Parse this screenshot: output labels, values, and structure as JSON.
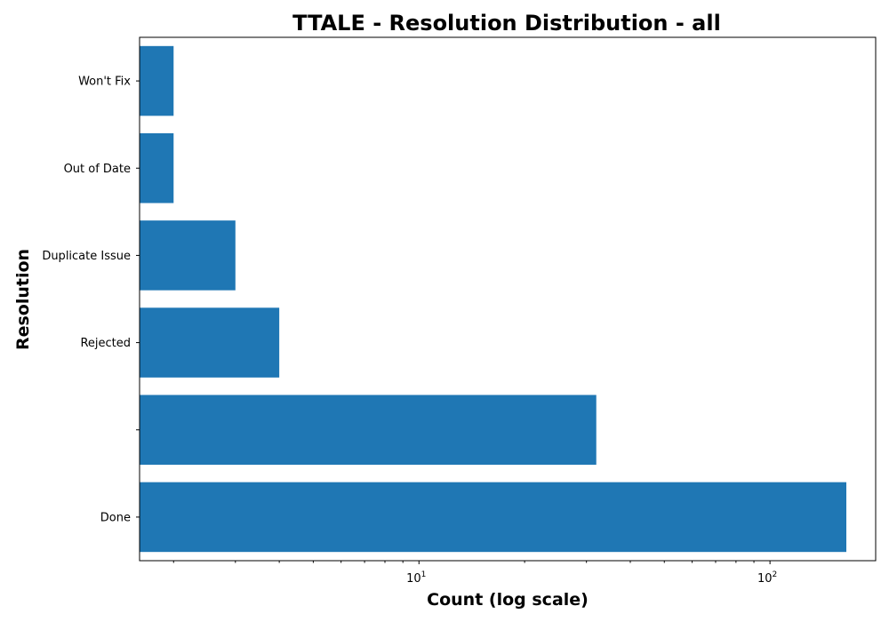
{
  "chart_data": {
    "type": "bar",
    "orientation": "horizontal",
    "title": "TTALE - Resolution Distribution - all",
    "xlabel": "Count (log scale)",
    "ylabel": "Resolution",
    "x_scale": "log",
    "xlim": [
      1.6,
      200
    ],
    "x_ticks": [
      {
        "value": 10,
        "base": "10",
        "exponent": "1"
      },
      {
        "value": 100,
        "base": "10",
        "exponent": "2"
      }
    ],
    "categories": [
      "Done",
      "",
      "Rejected",
      "Duplicate Issue",
      "Out of Date",
      "Won't Fix"
    ],
    "values": [
      165,
      32,
      4,
      3,
      2,
      2
    ],
    "bar_color": "#1f77b4",
    "grid": false,
    "legend": "none"
  }
}
